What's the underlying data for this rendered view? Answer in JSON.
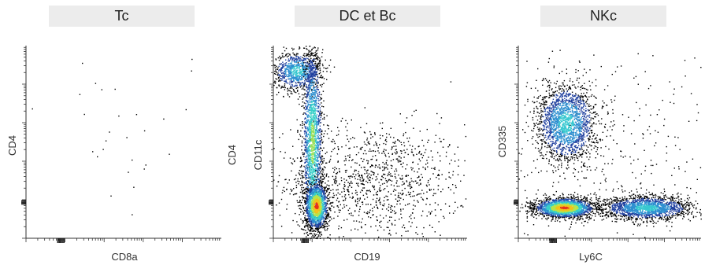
{
  "panels": [
    {
      "title": "Tc",
      "x_label": "CD8a",
      "y_labels": [
        "CD4"
      ]
    },
    {
      "title": "DC et Bc",
      "x_label": "CD19",
      "y_labels": [
        "CD4",
        "CD11c"
      ]
    },
    {
      "title": "NKc",
      "x_label": "Ly6C",
      "y_labels": [
        "CD335"
      ]
    }
  ],
  "chart_data": [
    {
      "type": "scatter",
      "title": "Tc",
      "xlabel": "CD8a",
      "ylabel": "CD4",
      "xscale": "log",
      "yscale": "log",
      "xlim": [
        0,
        1
      ],
      "ylim": [
        0,
        1
      ],
      "grid": false,
      "legend": "none",
      "colormap": "density (blue-cyan-yellow-red)",
      "populations": [
        {
          "name": "sparse events",
          "x_center": 0.45,
          "y_center": 0.55,
          "x_spread": 0.3,
          "y_spread": 0.25,
          "relative_count": 30,
          "peak_density": "low"
        }
      ]
    },
    {
      "type": "scatter",
      "title": "DC et Bc",
      "xlabel": "CD19",
      "ylabel": "CD11c",
      "xscale": "log",
      "yscale": "log",
      "xlim": [
        0,
        1
      ],
      "ylim": [
        0,
        1
      ],
      "grid": false,
      "legend": "none",
      "colormap": "density (blue-cyan-yellow-red)",
      "populations": [
        {
          "name": "CD11c-high cluster",
          "x_center": 0.12,
          "y_center": 0.87,
          "x_spread": 0.06,
          "y_spread": 0.05,
          "relative_count": 900,
          "peak_density": "medium"
        },
        {
          "name": "CD19 column",
          "x_center": 0.2,
          "y_center": 0.5,
          "x_spread": 0.025,
          "y_spread": 0.25,
          "relative_count": 2000,
          "peak_density": "high"
        },
        {
          "name": "CD19 low-CD11c hotspot",
          "x_center": 0.22,
          "y_center": 0.17,
          "x_spread": 0.03,
          "y_spread": 0.06,
          "relative_count": 1500,
          "peak_density": "very high"
        },
        {
          "name": "diffuse tail",
          "x_center": 0.5,
          "y_center": 0.3,
          "x_spread": 0.25,
          "y_spread": 0.15,
          "relative_count": 1200,
          "peak_density": "low"
        }
      ]
    },
    {
      "type": "scatter",
      "title": "NKc",
      "xlabel": "Ly6C",
      "ylabel": "CD335",
      "xscale": "log",
      "yscale": "log",
      "xlim": [
        0,
        1
      ],
      "ylim": [
        0,
        1
      ],
      "grid": false,
      "legend": "none",
      "colormap": "density (blue-cyan-yellow-red)",
      "populations": [
        {
          "name": "CD335+ cluster",
          "x_center": 0.26,
          "y_center": 0.6,
          "x_spread": 0.08,
          "y_spread": 0.1,
          "relative_count": 2000,
          "peak_density": "medium"
        },
        {
          "name": "CD335- band left",
          "x_center": 0.25,
          "y_center": 0.16,
          "x_spread": 0.08,
          "y_spread": 0.025,
          "relative_count": 2200,
          "peak_density": "very high"
        },
        {
          "name": "CD335- band right",
          "x_center": 0.7,
          "y_center": 0.16,
          "x_spread": 0.12,
          "y_spread": 0.03,
          "relative_count": 1800,
          "peak_density": "medium"
        },
        {
          "name": "background",
          "x_center": 0.5,
          "y_center": 0.4,
          "x_spread": 0.35,
          "y_spread": 0.3,
          "relative_count": 400,
          "peak_density": "low"
        }
      ]
    }
  ]
}
